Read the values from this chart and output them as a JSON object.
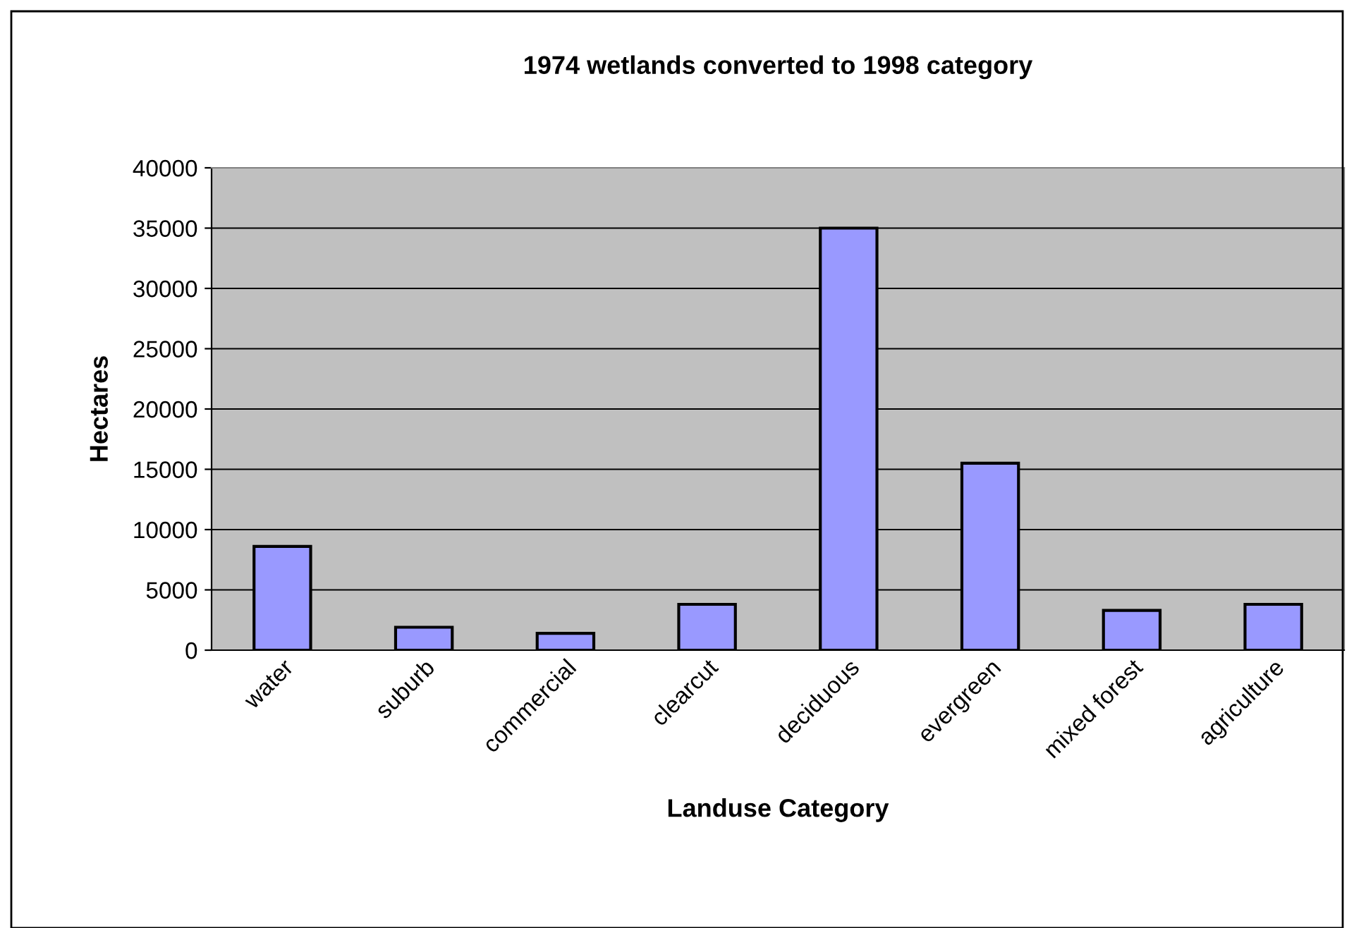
{
  "chart_data": {
    "type": "bar",
    "title": "1974 wetlands converted to 1998 category",
    "xlabel": "Landuse Category",
    "ylabel": "Hectares",
    "categories": [
      "water",
      "suburb",
      "commercial",
      "clearcut",
      "deciduous",
      "evergreen",
      "mixed forest",
      "agriculture"
    ],
    "values": [
      8600,
      1900,
      1400,
      3800,
      35000,
      15500,
      3300,
      3800
    ],
    "color": "#9999ff",
    "ylim": [
      0,
      40000
    ],
    "yticks": [
      0,
      5000,
      10000,
      15000,
      20000,
      25000,
      30000,
      35000,
      40000
    ],
    "grid": "y"
  }
}
